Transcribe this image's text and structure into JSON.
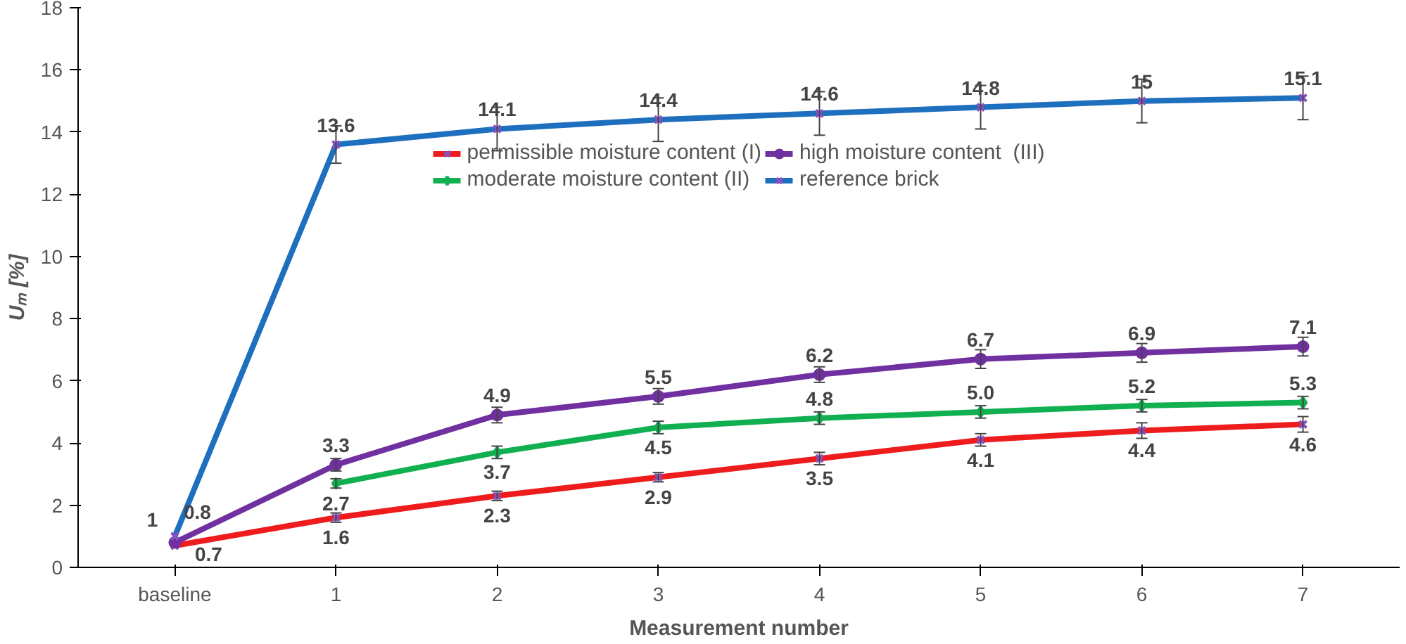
{
  "chart_data": {
    "type": "line",
    "xlabel": "Measurement number",
    "ylabel": "Uₘ [%]",
    "categories": [
      "baseline",
      "1",
      "2",
      "3",
      "4",
      "5",
      "6",
      "7"
    ],
    "ylim": [
      0,
      18
    ],
    "yticks": [
      0,
      2,
      4,
      6,
      8,
      10,
      12,
      14,
      16,
      18
    ],
    "grid": false,
    "legend": "top",
    "series": [
      {
        "name": "permissible moisture content (I)",
        "color": "#ee1c1c",
        "marker": "cross",
        "values": [
          0.7,
          1.6,
          2.3,
          2.9,
          3.5,
          4.1,
          4.4,
          4.6
        ],
        "errors": [
          null,
          0.15,
          0.15,
          0.15,
          0.2,
          0.2,
          0.25,
          0.25
        ],
        "value_labels": [
          "0.7",
          "1.6",
          "2.3",
          "2.9",
          "3.5",
          "4.1",
          "4.4",
          "4.6"
        ]
      },
      {
        "name": "moderate moisture content (II)",
        "color": "#10b050",
        "marker": "diamond",
        "values": [
          null,
          2.7,
          3.7,
          4.5,
          4.8,
          5.0,
          5.2,
          5.3
        ],
        "errors": [
          null,
          0.15,
          0.2,
          0.2,
          0.2,
          0.2,
          0.2,
          0.2
        ],
        "value_labels": [
          null,
          "2.7",
          "3.7",
          "4.5",
          "4.8",
          "5.0",
          "5.2",
          "5.3"
        ]
      },
      {
        "name": "high moisture content  (III)",
        "color": "#7030a0",
        "marker": "circle",
        "values": [
          0.8,
          3.3,
          4.9,
          5.5,
          6.2,
          6.7,
          6.9,
          7.1
        ],
        "errors": [
          null,
          0.2,
          0.25,
          0.25,
          0.25,
          0.3,
          0.3,
          0.3
        ],
        "value_labels": [
          "0.8",
          "3.3",
          "4.9",
          "5.5",
          "6.2",
          "6.7",
          "6.9",
          "7.1"
        ]
      },
      {
        "name": "reference brick",
        "color": "#1f6fbf",
        "marker": "cross",
        "values": [
          1,
          13.6,
          14.1,
          14.4,
          14.6,
          14.8,
          15,
          15.1
        ],
        "errors": [
          null,
          0.6,
          0.7,
          0.7,
          0.7,
          0.7,
          0.7,
          0.7
        ],
        "value_labels": [
          "1",
          "13.6",
          "14.1",
          "14.4",
          "14.6",
          "14.8",
          "15",
          "15.1"
        ]
      }
    ]
  }
}
